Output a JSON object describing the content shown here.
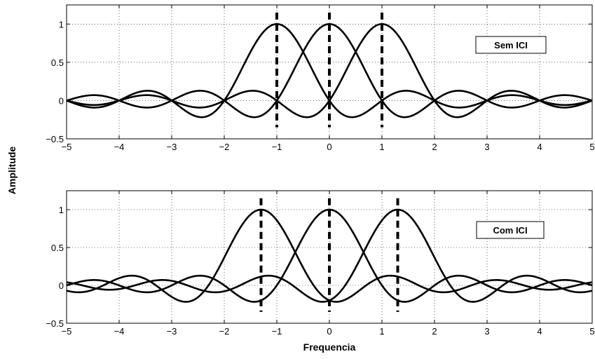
{
  "figure": {
    "ylabel": "Amplitude",
    "xlabel": "Frequencia"
  },
  "chart_data": [
    {
      "type": "line",
      "legend_text": "Sem ICI",
      "legend_placement": "top-right",
      "grid": true,
      "xlim": [
        -5,
        5
      ],
      "ylim": [
        -0.5,
        1.25
      ],
      "xticks": [
        -5,
        -4,
        -3,
        -2,
        -1,
        0,
        1,
        2,
        3,
        4,
        5
      ],
      "xtick_labels": [
        "−5",
        "−4",
        "−3",
        "−2",
        "−1",
        "0",
        "1",
        "2",
        "3",
        "4",
        "5"
      ],
      "yticks": [
        -0.5,
        0,
        0.5,
        1
      ],
      "ytick_labels": [
        "−0.5",
        "0",
        "0.5",
        "1"
      ],
      "function": "sinc",
      "series": [
        {
          "center": -1
        },
        {
          "center": 0
        },
        {
          "center": 1
        }
      ],
      "markers": {
        "x": [
          -1,
          0,
          1
        ],
        "y_range": [
          -0.35,
          1.15
        ],
        "style": "dashed"
      }
    },
    {
      "type": "line",
      "legend_text": "Com ICI",
      "legend_placement": "top-right",
      "grid": true,
      "xlim": [
        -5,
        5
      ],
      "ylim": [
        -0.5,
        1.25
      ],
      "xticks": [
        -5,
        -4,
        -3,
        -2,
        -1,
        0,
        1,
        2,
        3,
        4,
        5
      ],
      "xtick_labels": [
        "−5",
        "−4",
        "−3",
        "−2",
        "−1",
        "0",
        "1",
        "2",
        "3",
        "4",
        "5"
      ],
      "yticks": [
        -0.5,
        0,
        0.5,
        1
      ],
      "ytick_labels": [
        "−0.5",
        "0",
        "0.5",
        "1"
      ],
      "function": "sinc",
      "series": [
        {
          "center": -1.3
        },
        {
          "center": 0
        },
        {
          "center": 1.3
        }
      ],
      "markers": {
        "x": [
          -1.3,
          0,
          1.3
        ],
        "y_range": [
          -0.35,
          1.15
        ],
        "style": "dashed"
      }
    }
  ]
}
